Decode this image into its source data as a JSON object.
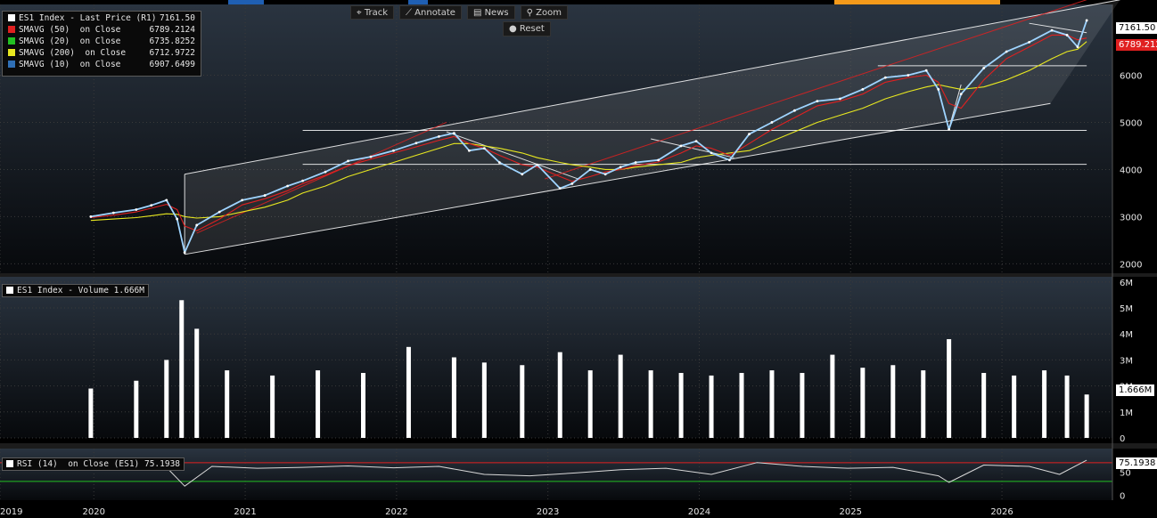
{
  "toolbar": {
    "track_label": "Track",
    "annotate_label": "Annotate",
    "news_label": "News",
    "zoom_label": "Zoom",
    "reset_label": "Reset"
  },
  "colors": {
    "background": "#000000",
    "grid": "#3a3a3a",
    "price": "#9fd4ff",
    "sma50": "#e02020",
    "sma20": "#22c022",
    "sma200": "#e8e820",
    "sma10": "#2f6fb5",
    "volume": "#ffffff",
    "rsi": "#d8d8d8",
    "rsi_upper": "#e02020",
    "rsi_lower": "#22c022",
    "accent_orange": "#f59a1a",
    "accent_blue": "#1f5fb3"
  },
  "chart_data": [
    {
      "type": "line",
      "panel": "price",
      "legend": [
        {
          "label": "ES1 Index - Last Price (R1)",
          "value": "7161.50",
          "color": "#ffffff"
        },
        {
          "label": "SMAVG (50)  on Close",
          "value": "6789.2124",
          "color": "#e02020"
        },
        {
          "label": "SMAVG (20)  on Close",
          "value": "6735.8252",
          "color": "#22c022"
        },
        {
          "label": "SMAVG (200)  on Close",
          "value": "6712.9722",
          "color": "#e8e820"
        },
        {
          "label": "SMAVG (10)  on Close",
          "value": "6907.6499",
          "color": "#2f6fb5"
        }
      ],
      "last_price_label": "7161.50",
      "sma50_label": "6789.212",
      "ylim": [
        1800,
        7500
      ],
      "yticks": [
        2000,
        3000,
        4000,
        5000,
        6000
      ],
      "x": [
        2019.6,
        2019.75,
        2019.9,
        2020.0,
        2020.1,
        2020.17,
        2020.22,
        2020.3,
        2020.45,
        2020.6,
        2020.75,
        2020.9,
        2021.0,
        2021.15,
        2021.3,
        2021.45,
        2021.6,
        2021.75,
        2021.9,
        2022.0,
        2022.1,
        2022.2,
        2022.3,
        2022.45,
        2022.55,
        2022.7,
        2022.78,
        2022.9,
        2023.0,
        2023.1,
        2023.2,
        2023.35,
        2023.5,
        2023.6,
        2023.7,
        2023.82,
        2023.95,
        2024.1,
        2024.25,
        2024.4,
        2024.55,
        2024.7,
        2024.85,
        2025.0,
        2025.12,
        2025.2,
        2025.27,
        2025.35,
        2025.5,
        2025.65,
        2025.8,
        2025.95,
        2026.05,
        2026.12,
        2026.18
      ],
      "price": [
        3000,
        3080,
        3150,
        3240,
        3350,
        2950,
        2240,
        2820,
        3100,
        3350,
        3450,
        3650,
        3760,
        3950,
        4180,
        4270,
        4400,
        4560,
        4700,
        4770,
        4400,
        4450,
        4150,
        3900,
        4100,
        3600,
        3700,
        4000,
        3900,
        4050,
        4150,
        4200,
        4500,
        4600,
        4350,
        4200,
        4750,
        5000,
        5250,
        5450,
        5500,
        5700,
        5950,
        6000,
        6100,
        5700,
        4850,
        5600,
        6150,
        6500,
        6700,
        6950,
        6850,
        6600,
        7161.5
      ],
      "sma200": [
        2920,
        2950,
        2980,
        3020,
        3060,
        3050,
        3000,
        2970,
        3000,
        3100,
        3200,
        3350,
        3500,
        3650,
        3850,
        4000,
        4150,
        4300,
        4450,
        4550,
        4550,
        4500,
        4450,
        4350,
        4250,
        4150,
        4100,
        4050,
        4000,
        4000,
        4050,
        4100,
        4150,
        4250,
        4300,
        4350,
        4400,
        4600,
        4800,
        5000,
        5150,
        5300,
        5500,
        5650,
        5750,
        5800,
        5750,
        5700,
        5750,
        5900,
        6100,
        6350,
        6500,
        6550,
        6712.97
      ],
      "sma50": [
        2980,
        3030,
        3100,
        3180,
        3260,
        3150,
        2800,
        2700,
        2950,
        3250,
        3380,
        3550,
        3700,
        3880,
        4080,
        4220,
        4350,
        4480,
        4620,
        4700,
        4550,
        4450,
        4300,
        4100,
        4050,
        3850,
        3750,
        3850,
        3950,
        4000,
        4080,
        4160,
        4350,
        4500,
        4450,
        4300,
        4550,
        4850,
        5100,
        5350,
        5450,
        5600,
        5850,
        5950,
        6000,
        5850,
        5400,
        5300,
        5900,
        6350,
        6600,
        6850,
        6850,
        6750,
        6789.21
      ],
      "trendlines": [
        {
          "x": [
            2020.22,
            2025.94
          ],
          "y": [
            2200,
            5400
          ],
          "color": "#ffffff"
        },
        {
          "x": [
            2020.22,
            2020.22
          ],
          "y": [
            2200,
            3900
          ],
          "color": "#ffffff"
        },
        {
          "x": [
            2020.22,
            2026.4
          ],
          "y": [
            3900,
            7600
          ],
          "color": "#ffffff"
        },
        {
          "x": [
            2021.0,
            2026.18
          ],
          "y": [
            4830,
            4830
          ],
          "color": "#ffffff"
        },
        {
          "x": [
            2021.0,
            2026.18
          ],
          "y": [
            4110,
            4110
          ],
          "color": "#ffffff"
        },
        {
          "x": [
            2024.8,
            2026.18
          ],
          "y": [
            6200,
            6200
          ],
          "color": "#ffffff"
        },
        {
          "x": [
            2021.95,
            2022.82
          ],
          "y": [
            4800,
            3800
          ],
          "color": "#ffffff"
        },
        {
          "x": [
            2023.3,
            2023.85
          ],
          "y": [
            4650,
            4250
          ],
          "color": "#ffffff"
        },
        {
          "x": [
            2025.27,
            2025.35
          ],
          "y": [
            4870,
            5800
          ],
          "color": "#ffffff"
        },
        {
          "x": [
            2025.8,
            2026.18
          ],
          "y": [
            7100,
            6900
          ],
          "color": "#ffffff"
        },
        {
          "x": [
            2020.3,
            2021.95
          ],
          "y": [
            2650,
            5000
          ],
          "color": "#e02020"
        },
        {
          "x": [
            2022.6,
            2026.18
          ],
          "y": [
            3800,
            7600
          ],
          "color": "#e02020"
        }
      ]
    },
    {
      "type": "bar",
      "panel": "volume",
      "title": "ES1 Index - Volume 1.666M",
      "last_label": "1.666M",
      "ylim": [
        0,
        6.2
      ],
      "yticks": [
        0,
        1,
        2,
        3,
        4,
        5,
        6
      ],
      "ytick_labels": [
        "0",
        "1M",
        "2M",
        "3M",
        "4M",
        "5M",
        "6M"
      ],
      "x": [
        2019.6,
        2019.9,
        2020.1,
        2020.2,
        2020.3,
        2020.5,
        2020.8,
        2021.1,
        2021.4,
        2021.7,
        2022.0,
        2022.2,
        2022.45,
        2022.7,
        2022.9,
        2023.1,
        2023.3,
        2023.5,
        2023.7,
        2023.9,
        2024.1,
        2024.3,
        2024.5,
        2024.7,
        2024.9,
        2025.1,
        2025.27,
        2025.5,
        2025.7,
        2025.9,
        2026.05,
        2026.18
      ],
      "values": [
        1.9,
        2.2,
        3.0,
        5.3,
        4.2,
        2.6,
        2.4,
        2.6,
        2.5,
        3.5,
        3.1,
        2.9,
        2.8,
        3.3,
        2.6,
        3.2,
        2.6,
        2.5,
        2.4,
        2.5,
        2.6,
        2.5,
        3.2,
        2.7,
        2.8,
        2.6,
        3.8,
        2.5,
        2.4,
        2.6,
        2.4,
        1.67
      ]
    },
    {
      "type": "line",
      "panel": "rsi",
      "title": "RSI (14)  on Close (ES1) 75.1938",
      "last_label": "75.1938",
      "ylim": [
        -10,
        100
      ],
      "yticks": [
        0,
        50
      ],
      "levels": [
        70,
        30
      ],
      "x": [
        2019.6,
        2019.9,
        2020.1,
        2020.22,
        2020.4,
        2020.7,
        2021.0,
        2021.3,
        2021.6,
        2021.9,
        2022.2,
        2022.5,
        2022.8,
        2023.1,
        2023.4,
        2023.7,
        2024.0,
        2024.3,
        2024.6,
        2024.9,
        2025.2,
        2025.27,
        2025.5,
        2025.8,
        2026.0,
        2026.18
      ],
      "values": [
        55,
        58,
        60,
        20,
        62,
        58,
        60,
        63,
        59,
        62,
        45,
        42,
        48,
        55,
        58,
        45,
        70,
        62,
        58,
        60,
        42,
        28,
        65,
        62,
        45,
        75.19
      ]
    }
  ],
  "x_axis": {
    "xlim": [
      2019.0,
      2026.35
    ],
    "ticks": [
      {
        "label": "2019",
        "x": 2019.0
      },
      {
        "label": "2020",
        "x": 2019.62
      },
      {
        "label": "2021",
        "x": 2020.62
      },
      {
        "label": "2022",
        "x": 2021.62
      },
      {
        "label": "2023",
        "x": 2022.62
      },
      {
        "label": "2024",
        "x": 2023.62
      },
      {
        "label": "2025",
        "x": 2024.62
      },
      {
        "label": "2026",
        "x": 2025.62
      }
    ]
  }
}
